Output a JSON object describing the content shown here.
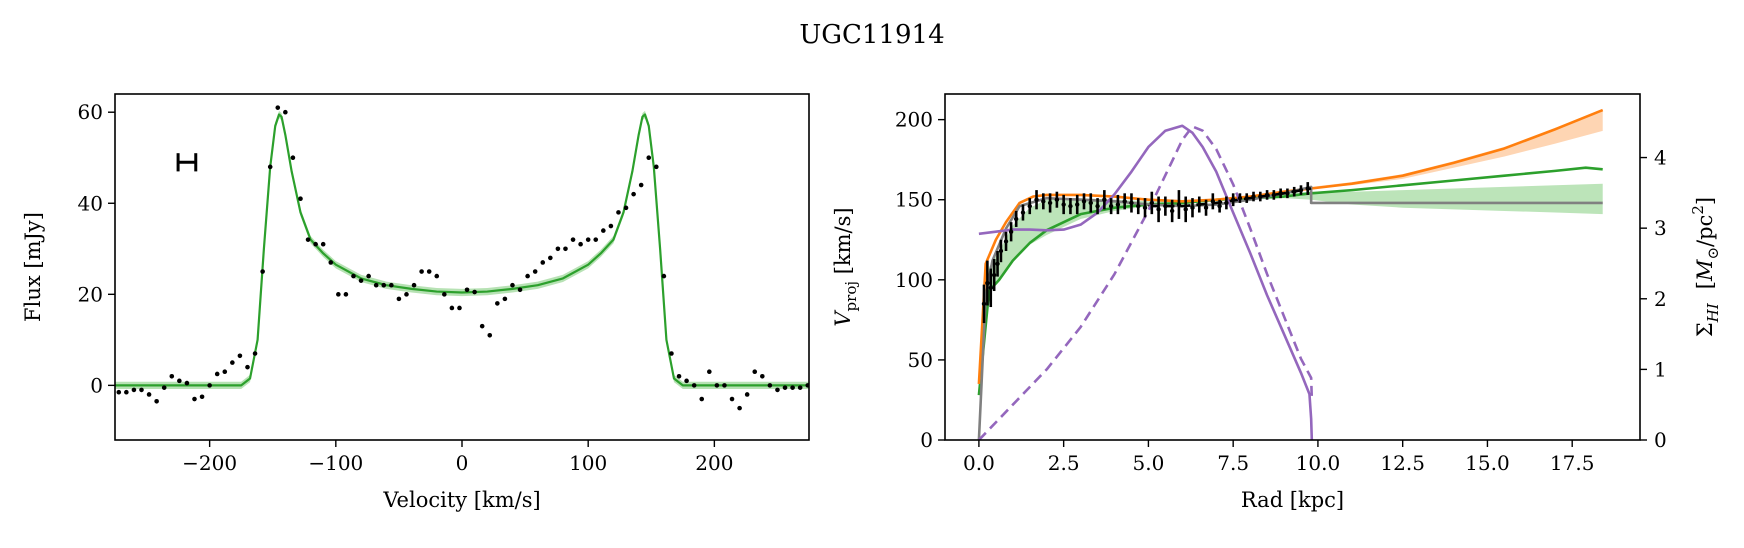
{
  "figure": {
    "title": "UGC11914"
  },
  "colors": {
    "green": "#2ca02c",
    "green_band": "#98d694",
    "orange": "#ff7f0e",
    "orange_band": "#fdbf8a",
    "purple": "#9467bd",
    "gray": "#808080",
    "black": "#000000"
  },
  "chart_data": [
    {
      "type": "line",
      "panel": "left",
      "xlabel": "Velocity [km/s]",
      "ylabel": "Flux [mJy]",
      "xlim": [
        -275,
        275
      ],
      "ylim": [
        -12,
        64
      ],
      "xticks": [
        -200,
        -100,
        0,
        100,
        200
      ],
      "xtick_labels": [
        "−200",
        "−100",
        "0",
        "100",
        "200"
      ],
      "yticks": [
        0,
        20,
        40,
        60
      ],
      "ytick_labels": [
        "0",
        "20",
        "40",
        "60"
      ],
      "error_bar_marker": {
        "x": -218,
        "y": 49,
        "half_width_x": 7,
        "half_height_y": 2
      },
      "series": [
        {
          "style": "line-with-band",
          "color": "#2ca02c",
          "band_width": 0.8,
          "x": [
            -275,
            -175,
            -168,
            -162,
            -157,
            -152,
            -148,
            -145,
            -143,
            -140,
            -135,
            -128,
            -120,
            -110,
            -100,
            -80,
            -60,
            -40,
            -20,
            0,
            20,
            40,
            60,
            80,
            100,
            110,
            120,
            128,
            135,
            140,
            143,
            145,
            148,
            152,
            157,
            162,
            168,
            175,
            275
          ],
          "y": [
            0,
            0,
            1.5,
            10,
            30,
            48,
            57,
            59.5,
            59,
            55,
            47,
            38,
            32,
            29,
            26.5,
            23.5,
            22,
            21.2,
            20.6,
            20.4,
            20.6,
            21.2,
            22,
            23.5,
            26.5,
            29,
            32,
            38,
            47,
            55,
            59,
            59.5,
            57,
            48,
            30,
            10,
            1.5,
            0,
            0
          ]
        },
        {
          "style": "scatter",
          "color": "#000000",
          "x": [
            -272,
            -266,
            -260,
            -254,
            -248,
            -242,
            -236,
            -230,
            -224,
            -218,
            -212,
            -206,
            -200,
            -194,
            -188,
            -182,
            -176,
            -170,
            -164,
            -158,
            -152,
            -146,
            -140,
            -134,
            -128,
            -122,
            -116,
            -110,
            -104,
            -98,
            -92,
            -86,
            -80,
            -74,
            -68,
            -62,
            -56,
            -50,
            -44,
            -38,
            -32,
            -26,
            -20,
            -14,
            -8,
            -2,
            4,
            10,
            16,
            22,
            28,
            34,
            40,
            46,
            52,
            58,
            64,
            70,
            76,
            82,
            88,
            94,
            100,
            106,
            112,
            118,
            124,
            130,
            136,
            142,
            148,
            154,
            160,
            166,
            172,
            178,
            184,
            190,
            196,
            202,
            208,
            214,
            220,
            226,
            232,
            238,
            244,
            250,
            256,
            262,
            268,
            274
          ],
          "y": [
            -1.5,
            -1.5,
            -1,
            -1,
            -2,
            -3.5,
            -0.5,
            2,
            1,
            0.5,
            -3,
            -2.5,
            0,
            2.5,
            3,
            5,
            6.5,
            4,
            7,
            25,
            48,
            61,
            60,
            50,
            41,
            32,
            31,
            31,
            27,
            20,
            20,
            24,
            23,
            24,
            22,
            22,
            22,
            19,
            20,
            22,
            25,
            25,
            24,
            20,
            17,
            17,
            21,
            20.5,
            13,
            11,
            18,
            19,
            22,
            21,
            24,
            25,
            27,
            28,
            30,
            30,
            32,
            31,
            32,
            32,
            34,
            35,
            38,
            39,
            42,
            44,
            50,
            48,
            24,
            7,
            2,
            1,
            0,
            -3,
            3,
            0,
            0,
            -3,
            -5,
            -2,
            3,
            2,
            0,
            -1,
            -0.5,
            -0.5,
            -0.5,
            0
          ]
        }
      ]
    },
    {
      "type": "line",
      "panel": "right",
      "xlabel": "Rad [kpc]",
      "ylabel": "V_proj [km/s]",
      "ylabel_parts": {
        "symbol": "V",
        "subscript": "proj",
        "unit": " [km/s]"
      },
      "y2label_parts": {
        "symbol": "Σ",
        "subscript": "HI",
        "unit_pre": "[",
        "unit_sym": "M",
        "unit_sub": "⊙",
        "unit_post": "/pc",
        "unit_sup": "2",
        "unit_end": "]"
      },
      "xlim": [
        -1,
        19.5
      ],
      "ylim": [
        0,
        216
      ],
      "y2lim": [
        0,
        4.9
      ],
      "xticks": [
        0,
        2.5,
        5,
        7.5,
        10,
        12.5,
        15,
        17.5
      ],
      "xtick_labels": [
        "0.0",
        "2.5",
        "5.0",
        "7.5",
        "10.0",
        "12.5",
        "15.0",
        "17.5"
      ],
      "yticks": [
        0,
        50,
        100,
        150,
        200
      ],
      "ytick_labels": [
        "0",
        "50",
        "100",
        "150",
        "200"
      ],
      "y2ticks": [
        0,
        1,
        2,
        3,
        4
      ],
      "y2tick_labels": [
        "0",
        "1",
        "2",
        "3",
        "4"
      ],
      "series": [
        {
          "style": "band",
          "color": "#98d694",
          "axis": "y",
          "x": [
            0,
            0.3,
            0.6,
            1.0,
            1.5,
            2.0,
            2.5,
            3.0,
            4.0,
            5.0,
            6.0,
            7.0,
            8.0,
            9.0,
            9.8,
            11,
            12.5,
            14,
            15.5,
            17,
            18.4
          ],
          "upper": [
            32,
            108,
            118,
            134,
            145,
            150,
            151,
            151,
            150,
            149,
            149,
            150,
            152,
            154,
            155,
            155,
            156,
            157,
            158,
            159,
            160
          ],
          "lower": [
            28,
            92,
            100,
            112,
            122,
            128,
            133,
            138,
            143,
            146,
            147,
            149,
            150,
            151,
            150,
            147,
            145,
            144,
            143,
            142,
            141
          ]
        },
        {
          "style": "band",
          "color": "#fdbf8a",
          "axis": "y",
          "x": [
            9.8,
            11,
            12.5,
            14,
            15.5,
            17,
            18.4
          ],
          "upper": [
            158,
            161,
            166,
            174,
            183,
            194,
            206
          ],
          "lower": [
            157,
            159,
            163,
            170,
            177,
            185,
            193
          ]
        },
        {
          "style": "line",
          "color": "#2ca02c",
          "axis": "y",
          "x": [
            0,
            0.3,
            0.6,
            1.0,
            1.5,
            2.0,
            2.5,
            3.0,
            4.0,
            5.0,
            6.0,
            7.0,
            8.0,
            9.0,
            9.8,
            11,
            12.5,
            14,
            15.5,
            17,
            17.9,
            18.4
          ],
          "y": [
            28,
            93,
            100,
            112,
            123,
            131,
            136,
            141,
            145,
            147,
            148,
            150,
            151,
            152,
            154,
            156,
            159,
            162,
            165,
            168,
            170,
            169
          ]
        },
        {
          "style": "line",
          "color": "#ff7f0e",
          "axis": "y",
          "x": [
            0,
            0.2,
            0.5,
            0.8,
            1.2,
            1.6,
            2.0,
            3.0,
            4.0,
            5.0,
            6.0,
            7.0,
            8.0,
            9.0,
            9.8,
            11,
            12.5,
            14,
            15.5,
            17,
            18.4
          ],
          "y": [
            35,
            110,
            125,
            136,
            148,
            152,
            153,
            153,
            152,
            150,
            149,
            150,
            152,
            155,
            157,
            160,
            165,
            173,
            182,
            194,
            206
          ]
        },
        {
          "style": "line",
          "color": "#808080",
          "axis": "y",
          "x": [
            0,
            0.2,
            0.4,
            0.8,
            1.2,
            2.0,
            3.0,
            4.0,
            5.0,
            6.0,
            7.0,
            8.0,
            9.0,
            9.8,
            9.8,
            18.4
          ],
          "y": [
            0,
            90,
            112,
            132,
            146,
            151,
            150,
            149,
            147,
            146,
            147,
            150,
            154,
            158,
            148,
            148
          ]
        },
        {
          "style": "line",
          "color": "#000000",
          "axis": "y",
          "dash": "10,6",
          "x": [
            5.0,
            6.0,
            7.0,
            8.0,
            9.0,
            9.8
          ],
          "y": [
            146,
            146,
            148,
            151,
            154,
            157
          ]
        },
        {
          "style": "line",
          "color": "#9467bd",
          "axis": "y2",
          "x": [
            0,
            0.5,
            1.0,
            1.5,
            2.0,
            2.5,
            3.0,
            3.5,
            4.0,
            4.5,
            5.0,
            5.5,
            6.0,
            6.3,
            6.6,
            7.0,
            7.5,
            8.0,
            8.5,
            9.0,
            9.5,
            9.75,
            9.8,
            9.82
          ],
          "y": [
            2.92,
            2.95,
            2.98,
            2.98,
            2.97,
            2.98,
            3.05,
            3.22,
            3.48,
            3.8,
            4.15,
            4.38,
            4.45,
            4.35,
            4.15,
            3.8,
            3.22,
            2.65,
            2.05,
            1.5,
            0.95,
            0.65,
            0.3,
            0
          ]
        },
        {
          "style": "line",
          "color": "#9467bd",
          "axis": "y2",
          "dash": "10,6",
          "x": [
            0,
            0.5,
            1.0,
            2.0,
            3.0,
            4.0,
            5.0,
            5.5,
            6.0,
            6.3,
            6.6,
            7.0,
            7.5,
            8.0,
            8.5,
            9.0,
            9.5,
            9.8,
            9.82
          ],
          "y": [
            0,
            0.25,
            0.5,
            1.0,
            1.6,
            2.35,
            3.25,
            3.75,
            4.25,
            4.44,
            4.38,
            4.12,
            3.62,
            3.0,
            2.35,
            1.75,
            1.15,
            0.88,
            0.58
          ]
        },
        {
          "style": "errorbar",
          "color": "#000000",
          "axis": "y",
          "x": [
            0.15,
            0.25,
            0.35,
            0.45,
            0.55,
            0.65,
            0.8,
            0.95,
            1.1,
            1.3,
            1.5,
            1.7,
            1.9,
            2.1,
            2.3,
            2.5,
            2.7,
            2.9,
            3.1,
            3.3,
            3.5,
            3.7,
            3.9,
            4.1,
            4.3,
            4.5,
            4.7,
            4.9,
            5.1,
            5.3,
            5.5,
            5.7,
            5.9,
            6.1,
            6.3,
            6.5,
            6.7,
            6.9,
            7.1,
            7.3,
            7.5,
            7.7,
            7.9,
            8.1,
            8.3,
            8.5,
            8.7,
            8.9,
            9.1,
            9.3,
            9.5,
            9.7
          ],
          "y": [
            85,
            98,
            95,
            103,
            110,
            118,
            124,
            130,
            138,
            142,
            146,
            150,
            149,
            148,
            150,
            147,
            146,
            147,
            149,
            148,
            146,
            150,
            146,
            147,
            149,
            148,
            146,
            145,
            148,
            144,
            146,
            143,
            147,
            144,
            145,
            147,
            145,
            149,
            146,
            148,
            150,
            151,
            151,
            152,
            152,
            153,
            153,
            154,
            154,
            155,
            156,
            157
          ],
          "err": [
            12,
            14,
            12,
            10,
            8,
            7,
            6,
            6,
            5,
            5,
            5,
            6,
            5,
            6,
            5,
            6,
            5,
            6,
            5,
            6,
            5,
            6,
            5,
            6,
            5,
            6,
            5,
            6,
            7,
            8,
            6,
            7,
            9,
            8,
            6,
            5,
            5,
            5,
            4,
            4,
            4,
            3,
            3,
            3,
            3,
            3,
            3,
            3,
            3,
            3,
            3,
            4
          ]
        }
      ]
    }
  ]
}
